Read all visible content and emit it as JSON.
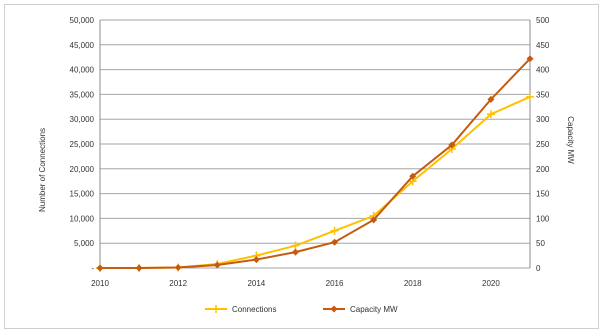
{
  "chart_data": {
    "type": "line",
    "x": [
      "2010",
      "2011",
      "2012",
      "2013",
      "2014",
      "2015",
      "2016",
      "2017",
      "2018",
      "2019",
      "2020",
      "2021"
    ],
    "x_tick_labels": [
      "2010",
      "2012",
      "2014",
      "2016",
      "2018",
      "2020"
    ],
    "y_left": {
      "label": "Number of Connections",
      "lim": [
        0,
        50000
      ],
      "ticks": [
        "-",
        "5,000",
        "10,000",
        "15,000",
        "20,000",
        "25,000",
        "30,000",
        "35,000",
        "40,000",
        "45,000",
        "50,000"
      ]
    },
    "y_right": {
      "label": "Capacity MW",
      "lim": [
        0,
        500
      ],
      "ticks": [
        "0",
        "50",
        "100",
        "150",
        "200",
        "250",
        "300",
        "350",
        "400",
        "450",
        "500"
      ]
    },
    "series": [
      {
        "name": "Connections",
        "axis": "left",
        "color": "#ffc000",
        "marker": "cross",
        "values": [
          0,
          0,
          100,
          800,
          2500,
          4500,
          7500,
          10500,
          17500,
          24000,
          31000,
          34500
        ]
      },
      {
        "name": "Capacity MW",
        "axis": "right",
        "color": "#c55a11",
        "marker": "diamond",
        "values": [
          0,
          0,
          1,
          6,
          17,
          32,
          52,
          97,
          185,
          248,
          340,
          422
        ]
      }
    ],
    "grid": true,
    "legend": "bottom"
  }
}
